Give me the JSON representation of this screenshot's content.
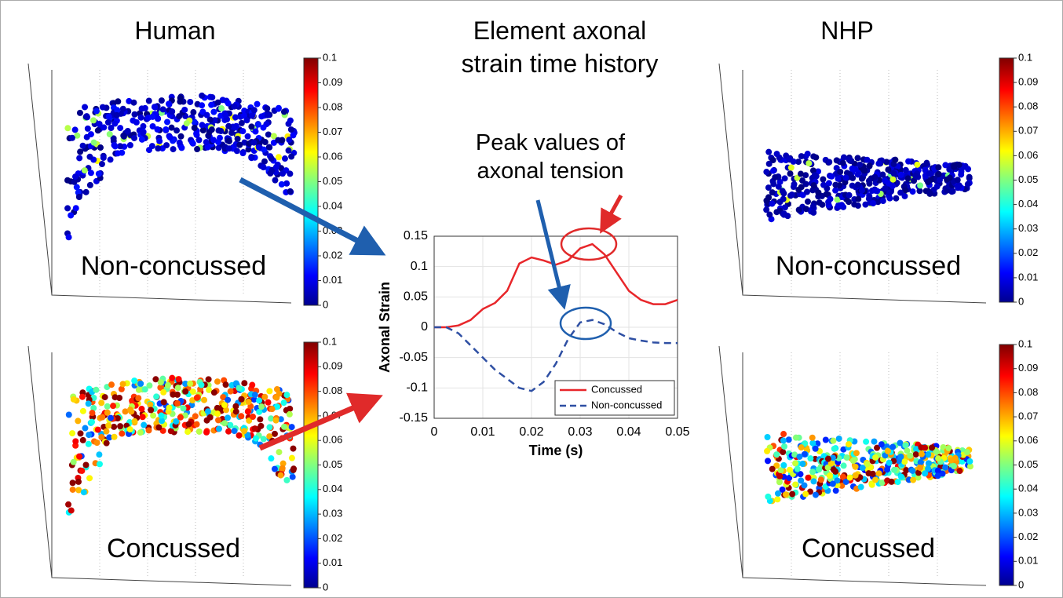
{
  "panels": {
    "human": {
      "title": "Human",
      "top_label": "Non-concussed",
      "bottom_label": "Concussed"
    },
    "nhp": {
      "title": "NHP",
      "top_label": "Non-concussed",
      "bottom_label": "Concussed"
    }
  },
  "colorbars": [
    {
      "lim": [
        0,
        0.1
      ],
      "ticks": [
        0,
        0.01,
        0.02,
        0.03,
        0.04,
        0.05,
        0.06,
        0.07,
        0.08,
        0.09,
        0.1
      ]
    },
    {
      "lim": [
        0,
        0.1
      ],
      "ticks": [
        0,
        0.01,
        0.02,
        0.03,
        0.04,
        0.05,
        0.06,
        0.07,
        0.08,
        0.09,
        0.1
      ]
    },
    {
      "lim": [
        0,
        0.1
      ],
      "ticks": [
        0,
        0.01,
        0.02,
        0.03,
        0.04,
        0.05,
        0.06,
        0.07,
        0.08,
        0.09,
        0.1
      ]
    },
    {
      "lim": [
        0,
        0.1
      ],
      "ticks": [
        0,
        0.01,
        0.02,
        0.03,
        0.04,
        0.05,
        0.06,
        0.07,
        0.08,
        0.09,
        0.1
      ]
    }
  ],
  "chart_data": {
    "type": "line",
    "title": "Element axonal strain time history",
    "annotation": "Peak values of axonal tension",
    "x_label": "Time (s)",
    "y_label": "Axonal Strain",
    "x": [
      0,
      0.0025,
      0.005,
      0.0075,
      0.01,
      0.0125,
      0.015,
      0.0175,
      0.02,
      0.0225,
      0.025,
      0.0275,
      0.03,
      0.0325,
      0.035,
      0.0375,
      0.04,
      0.0425,
      0.045,
      0.0475,
      0.05
    ],
    "series": [
      {
        "name": "Concussed",
        "color": "#e8262a",
        "dash": false,
        "values": [
          0,
          0,
          0.003,
          0.012,
          0.03,
          0.04,
          0.06,
          0.105,
          0.115,
          0.11,
          0.103,
          0.11,
          0.13,
          0.137,
          0.12,
          0.09,
          0.06,
          0.045,
          0.038,
          0.038,
          0.045
        ]
      },
      {
        "name": "Non-concussed",
        "color": "#2e4fa3",
        "dash": true,
        "values": [
          0,
          0,
          -0.01,
          -0.03,
          -0.05,
          -0.07,
          -0.085,
          -0.1,
          -0.105,
          -0.09,
          -0.06,
          -0.02,
          0.008,
          0.012,
          0.005,
          -0.008,
          -0.018,
          -0.022,
          -0.025,
          -0.026,
          -0.026
        ]
      }
    ],
    "xlim": [
      0,
      0.05
    ],
    "xticks": [
      0,
      0.01,
      0.02,
      0.03,
      0.04,
      0.05
    ],
    "ylim": [
      -0.15,
      0.15
    ],
    "yticks": [
      -0.15,
      -0.1,
      -0.05,
      0,
      0.05,
      0.1,
      0.15
    ],
    "grid": true,
    "legend": "lower right"
  }
}
